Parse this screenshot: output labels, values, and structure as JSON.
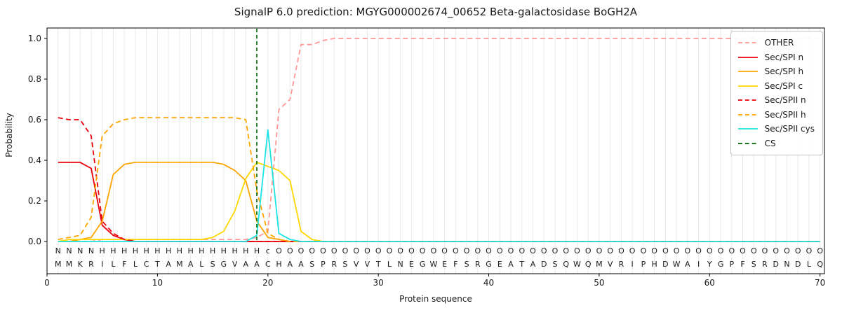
{
  "chart_data": {
    "type": "line",
    "title": "SignalP 6.0 prediction: MGYG000002674_00652 Beta-galactosidase BoGH2A",
    "xlabel": "Protein sequence",
    "ylabel": "Probability",
    "xlim": [
      0,
      70.4
    ],
    "ylim": [
      0,
      1.05
    ],
    "xticks": [
      0,
      10,
      20,
      30,
      40,
      50,
      60,
      70
    ],
    "yticks": [
      "0.0",
      "0.2",
      "0.4",
      "0.6",
      "0.8",
      "1.0"
    ],
    "grid": {
      "vertical_per_residue": true,
      "horizontal": false
    },
    "legend_position": "upper-right",
    "sequence": "MMKRILFLCTAMALSGVAACHAASPRSVVTLNEGWEFSRGEATADSQWQMVRIPHDWAIYGPFSRDNDLQ",
    "annotation": "NNNNHHHHHHHHHHHHHHHcOOOOOOOOOOOOOOOOOOOOOOOOOOOOOOOOOOOOOOOOOOOOOOOOOO",
    "annotation_colors": {
      "N": "#e8000b",
      "H": "#ffa500",
      "c": "#1de3e3",
      "O": "#9a9a9a"
    },
    "sequence_color": "#1a1a1a",
    "gridline_color": "#e9e9e9",
    "series": [
      {
        "name": "OTHER",
        "color": "#ff9896",
        "dash": true,
        "values": [
          0,
          0,
          0,
          0,
          0.01,
          0.01,
          0.01,
          0.01,
          0.01,
          0.01,
          0.01,
          0.01,
          0.01,
          0.01,
          0.01,
          0.01,
          0.01,
          0.01,
          0.02,
          0.05,
          0.65,
          0.7,
          0.97,
          0.97,
          0.99,
          1,
          1,
          1,
          1,
          1,
          1,
          1,
          1,
          1,
          1,
          1,
          1,
          1,
          1,
          1,
          1,
          1,
          1,
          1,
          1,
          1,
          1,
          1,
          1,
          1,
          1,
          1,
          1,
          1,
          1,
          1,
          1,
          1,
          1,
          1,
          1,
          1,
          1,
          1,
          1,
          1,
          1,
          1,
          1,
          1
        ]
      },
      {
        "name": "Sec/SPI n",
        "color": "#e8000b",
        "dash": false,
        "values": [
          0.39,
          0.39,
          0.39,
          0.36,
          0.08,
          0.03,
          0.01,
          0,
          0,
          0,
          0,
          0,
          0,
          0,
          0,
          0,
          0,
          0,
          0,
          0,
          0,
          0,
          0,
          0,
          0,
          0,
          0,
          0,
          0,
          0,
          0,
          0,
          0,
          0,
          0,
          0,
          0,
          0,
          0,
          0,
          0,
          0,
          0,
          0,
          0,
          0,
          0,
          0,
          0,
          0,
          0,
          0,
          0,
          0,
          0,
          0,
          0,
          0,
          0,
          0,
          0,
          0,
          0,
          0,
          0,
          0,
          0,
          0,
          0,
          0
        ]
      },
      {
        "name": "Sec/SPI h",
        "color": "#ffa500",
        "dash": false,
        "values": [
          0,
          0,
          0.01,
          0.02,
          0.1,
          0.33,
          0.38,
          0.39,
          0.39,
          0.39,
          0.39,
          0.39,
          0.39,
          0.39,
          0.39,
          0.38,
          0.35,
          0.3,
          0.1,
          0.02,
          0.01,
          0,
          0,
          0,
          0,
          0,
          0,
          0,
          0,
          0,
          0,
          0,
          0,
          0,
          0,
          0,
          0,
          0,
          0,
          0,
          0,
          0,
          0,
          0,
          0,
          0,
          0,
          0,
          0,
          0,
          0,
          0,
          0,
          0,
          0,
          0,
          0,
          0,
          0,
          0,
          0,
          0,
          0,
          0,
          0,
          0,
          0,
          0,
          0,
          0
        ]
      },
      {
        "name": "Sec/SPI c",
        "color": "#ffd700",
        "dash": false,
        "values": [
          0,
          0.01,
          0.01,
          0.01,
          0.01,
          0.01,
          0.01,
          0.01,
          0.01,
          0.01,
          0.01,
          0.01,
          0.01,
          0.01,
          0.02,
          0.05,
          0.15,
          0.31,
          0.39,
          0.37,
          0.35,
          0.3,
          0.05,
          0.01,
          0,
          0,
          0,
          0,
          0,
          0,
          0,
          0,
          0,
          0,
          0,
          0,
          0,
          0,
          0,
          0,
          0,
          0,
          0,
          0,
          0,
          0,
          0,
          0,
          0,
          0,
          0,
          0,
          0,
          0,
          0,
          0,
          0,
          0,
          0,
          0,
          0,
          0,
          0,
          0,
          0,
          0,
          0,
          0,
          0,
          0
        ]
      },
      {
        "name": "Sec/SPII n",
        "color": "#e8000b",
        "dash": true,
        "values": [
          0.61,
          0.6,
          0.6,
          0.52,
          0.1,
          0.04,
          0.01,
          0,
          0,
          0,
          0,
          0,
          0,
          0,
          0,
          0,
          0,
          0,
          0,
          0,
          0,
          0,
          0,
          0,
          0,
          0,
          0,
          0,
          0,
          0,
          0,
          0,
          0,
          0,
          0,
          0,
          0,
          0,
          0,
          0,
          0,
          0,
          0,
          0,
          0,
          0,
          0,
          0,
          0,
          0,
          0,
          0,
          0,
          0,
          0,
          0,
          0,
          0,
          0,
          0,
          0,
          0,
          0,
          0,
          0,
          0,
          0,
          0,
          0,
          0
        ]
      },
      {
        "name": "Sec/SPII h",
        "color": "#ffa500",
        "dash": true,
        "values": [
          0.01,
          0.02,
          0.03,
          0.12,
          0.52,
          0.58,
          0.6,
          0.61,
          0.61,
          0.61,
          0.61,
          0.61,
          0.61,
          0.61,
          0.61,
          0.61,
          0.61,
          0.6,
          0.25,
          0.04,
          0.01,
          0,
          0,
          0,
          0,
          0,
          0,
          0,
          0,
          0,
          0,
          0,
          0,
          0,
          0,
          0,
          0,
          0,
          0,
          0,
          0,
          0,
          0,
          0,
          0,
          0,
          0,
          0,
          0,
          0,
          0,
          0,
          0,
          0,
          0,
          0,
          0,
          0,
          0,
          0,
          0,
          0,
          0,
          0,
          0,
          0,
          0,
          0,
          0,
          0
        ]
      },
      {
        "name": "Sec/SPII cys",
        "color": "#1de3e3",
        "dash": false,
        "values": [
          0,
          0,
          0,
          0,
          0,
          0,
          0,
          0,
          0,
          0,
          0,
          0,
          0,
          0,
          0,
          0,
          0,
          0,
          0.03,
          0.55,
          0.04,
          0.01,
          0,
          0,
          0,
          0,
          0,
          0,
          0,
          0,
          0,
          0,
          0,
          0,
          0,
          0,
          0,
          0,
          0,
          0,
          0,
          0,
          0,
          0,
          0,
          0,
          0,
          0,
          0,
          0,
          0,
          0,
          0,
          0,
          0,
          0,
          0,
          0,
          0,
          0,
          0,
          0,
          0,
          0,
          0,
          0,
          0,
          0,
          0,
          0
        ]
      }
    ],
    "cs_marker": {
      "label": "CS",
      "position": 19,
      "color": "#006400",
      "dash": true
    }
  }
}
